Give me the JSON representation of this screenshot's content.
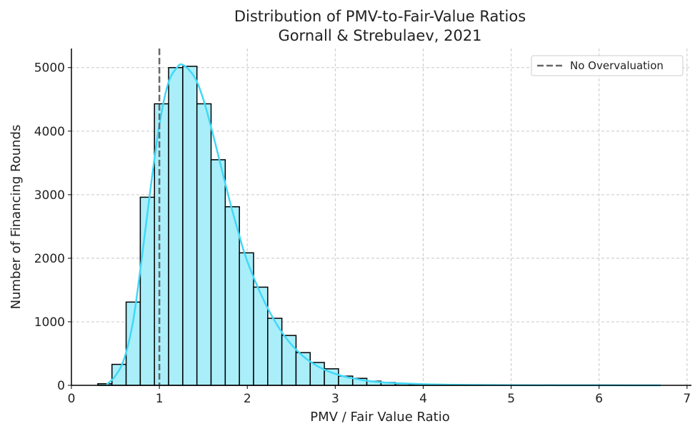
{
  "chart_data": {
    "type": "bar",
    "title": "Distribution of PMV-to-Fair-Value Ratios",
    "subtitle": "Gornall & Strebulaev, 2021",
    "xlabel": "PMV / Fair Value Ratio",
    "ylabel": "Number of Financing Rounds",
    "xlim": [
      0,
      7.05
    ],
    "ylim": [
      0,
      5300
    ],
    "xticks": [
      0,
      1,
      2,
      3,
      4,
      5,
      6,
      7
    ],
    "yticks": [
      0,
      1000,
      2000,
      3000,
      4000,
      5000
    ],
    "grid": true,
    "legend": {
      "placement": "top-right",
      "entries": [
        "No Overvaluation"
      ]
    },
    "reference_line": {
      "x": 1,
      "label": "No Overvaluation",
      "color": "#666666",
      "style": "dashed"
    },
    "histogram": {
      "bin_start": 0.3,
      "bin_width": 0.161,
      "counts": [
        25,
        330,
        1310,
        2960,
        4430,
        5000,
        5020,
        4430,
        3550,
        2810,
        2085,
        1545,
        1055,
        785,
        515,
        360,
        260,
        145,
        110,
        65,
        45,
        25,
        15,
        10,
        6,
        4,
        3,
        2,
        1,
        1
      ],
      "fill_color": "#aaeefa",
      "edge_color": "#000000"
    },
    "kde": {
      "color": "#40d8f8",
      "x": [
        0.4,
        0.5,
        0.6,
        0.7,
        0.8,
        0.9,
        1.0,
        1.1,
        1.2,
        1.27,
        1.4,
        1.5,
        1.6,
        1.7,
        1.8,
        1.9,
        2.0,
        2.2,
        2.4,
        2.6,
        2.8,
        3.0,
        3.2,
        3.5,
        4.0,
        4.5,
        5.0,
        6.0,
        6.7
      ],
      "y": [
        10,
        150,
        420,
        1000,
        2000,
        3100,
        4100,
        4750,
        5000,
        5040,
        4850,
        4500,
        4000,
        3450,
        2900,
        2400,
        1950,
        1300,
        820,
        500,
        300,
        180,
        110,
        50,
        18,
        7,
        3,
        1,
        0
      ]
    }
  }
}
